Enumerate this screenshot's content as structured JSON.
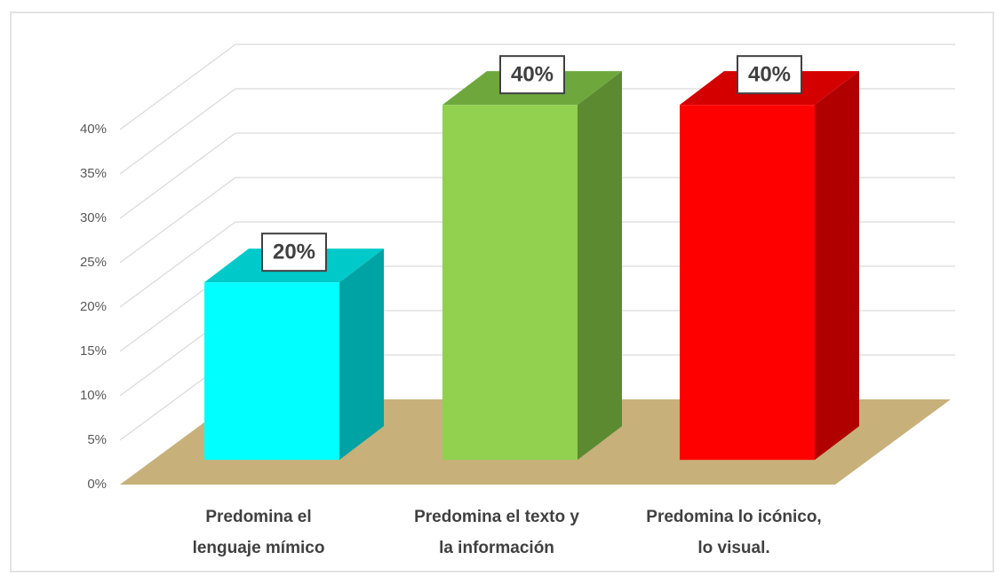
{
  "chart_data": {
    "type": "bar3d",
    "categories": [
      [
        "Predomina el",
        "lenguaje mímico"
      ],
      [
        "Predomina el texto y",
        "la información"
      ],
      [
        "Predomina lo icónico,",
        "lo visual."
      ]
    ],
    "series": [
      {
        "values": [
          20,
          40,
          40
        ],
        "value_labels": [
          "20%",
          "40%",
          "40%"
        ],
        "colors": [
          "#00ffff",
          "#92d050",
          "#ff0000"
        ],
        "side_colors": [
          "#00a3a3",
          "#5b8a31",
          "#b00000"
        ],
        "top_colors": [
          "#00c9c9",
          "#6ea83d",
          "#d40000"
        ]
      }
    ],
    "ylim": [
      0,
      40
    ],
    "yticks": [
      {
        "value": 0,
        "label": "0%"
      },
      {
        "value": 5,
        "label": "5%"
      },
      {
        "value": 10,
        "label": "10%"
      },
      {
        "value": 15,
        "label": "15%"
      },
      {
        "value": 20,
        "label": "20%"
      },
      {
        "value": 25,
        "label": "25%"
      },
      {
        "value": 30,
        "label": "30%"
      },
      {
        "value": 35,
        "label": "35%"
      },
      {
        "value": 40,
        "label": "40%"
      }
    ],
    "grid": true,
    "floor_color": "#c7b07a"
  }
}
